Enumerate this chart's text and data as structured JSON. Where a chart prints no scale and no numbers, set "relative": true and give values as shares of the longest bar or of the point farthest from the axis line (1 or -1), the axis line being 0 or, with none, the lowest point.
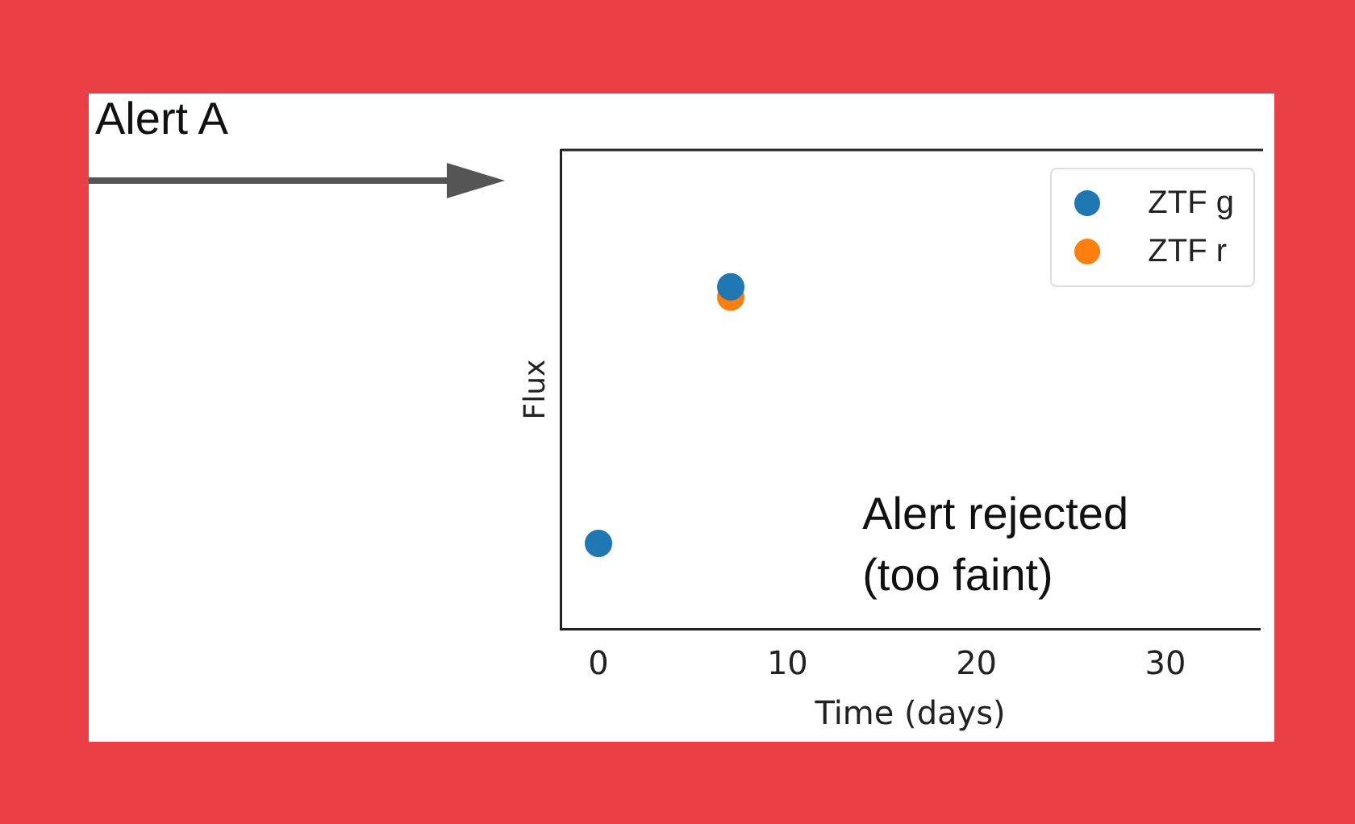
{
  "chart_data": {
    "type": "scatter",
    "xlabel": "Time (days)",
    "ylabel": "Flux",
    "relative": true,
    "xlim": [
      -2,
      35
    ],
    "xticks": [
      0,
      10,
      20,
      30
    ],
    "legend": "top right",
    "marker": "circle",
    "grid": false,
    "x": [
      0,
      7
    ],
    "series": [
      {
        "name": "ZTF g",
        "color": "#1f77b4",
        "values": [
          0.25,
          1
        ]
      },
      {
        "name": "ZTF r",
        "color": "#ff7f0e",
        "values": [
          null,
          0.97
        ]
      }
    ],
    "annotations": [
      "Alert A",
      "Alert rejected\n(too faint)"
    ]
  }
}
